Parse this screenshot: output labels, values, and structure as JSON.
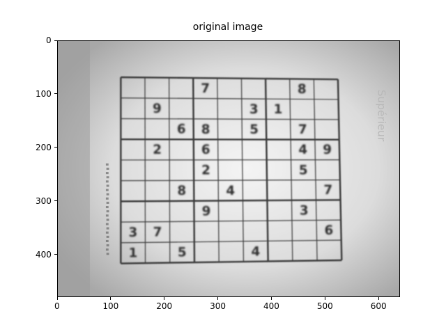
{
  "figure": {
    "title": "original image"
  },
  "axes": {
    "x_ticks": [
      "0",
      "100",
      "200",
      "300",
      "400",
      "500",
      "600"
    ],
    "y_ticks": [
      "0",
      "100",
      "200",
      "300",
      "400"
    ],
    "xlim": [
      0,
      640
    ],
    "ylim": [
      480,
      0
    ]
  },
  "photo": {
    "watermark_text": "Supérieur",
    "grid": [
      [
        "",
        "",
        "",
        "7",
        "",
        "",
        "",
        "8",
        ""
      ],
      [
        "",
        "9",
        "",
        "",
        "",
        "3",
        "1",
        "",
        ""
      ],
      [
        "",
        "",
        "6",
        "8",
        "",
        "5",
        "",
        "7",
        ""
      ],
      [
        "",
        "2",
        "",
        "6",
        "",
        "",
        "",
        "4",
        "9"
      ],
      [
        "",
        "",
        "",
        "2",
        "",
        "",
        "",
        "5",
        ""
      ],
      [
        "",
        "",
        "8",
        "",
        "4",
        "",
        "",
        "",
        "7"
      ],
      [
        "",
        "",
        "",
        "9",
        "",
        "",
        "",
        "3",
        ""
      ],
      [
        "3",
        "7",
        "",
        "",
        "",
        "",
        "",
        "",
        "6"
      ],
      [
        "1",
        "",
        "5",
        "",
        "",
        "4",
        "",
        "",
        ""
      ]
    ],
    "colors": {
      "paper": "#e6e6e6",
      "ink": "#3a3a3a",
      "digit": "#333333"
    }
  }
}
